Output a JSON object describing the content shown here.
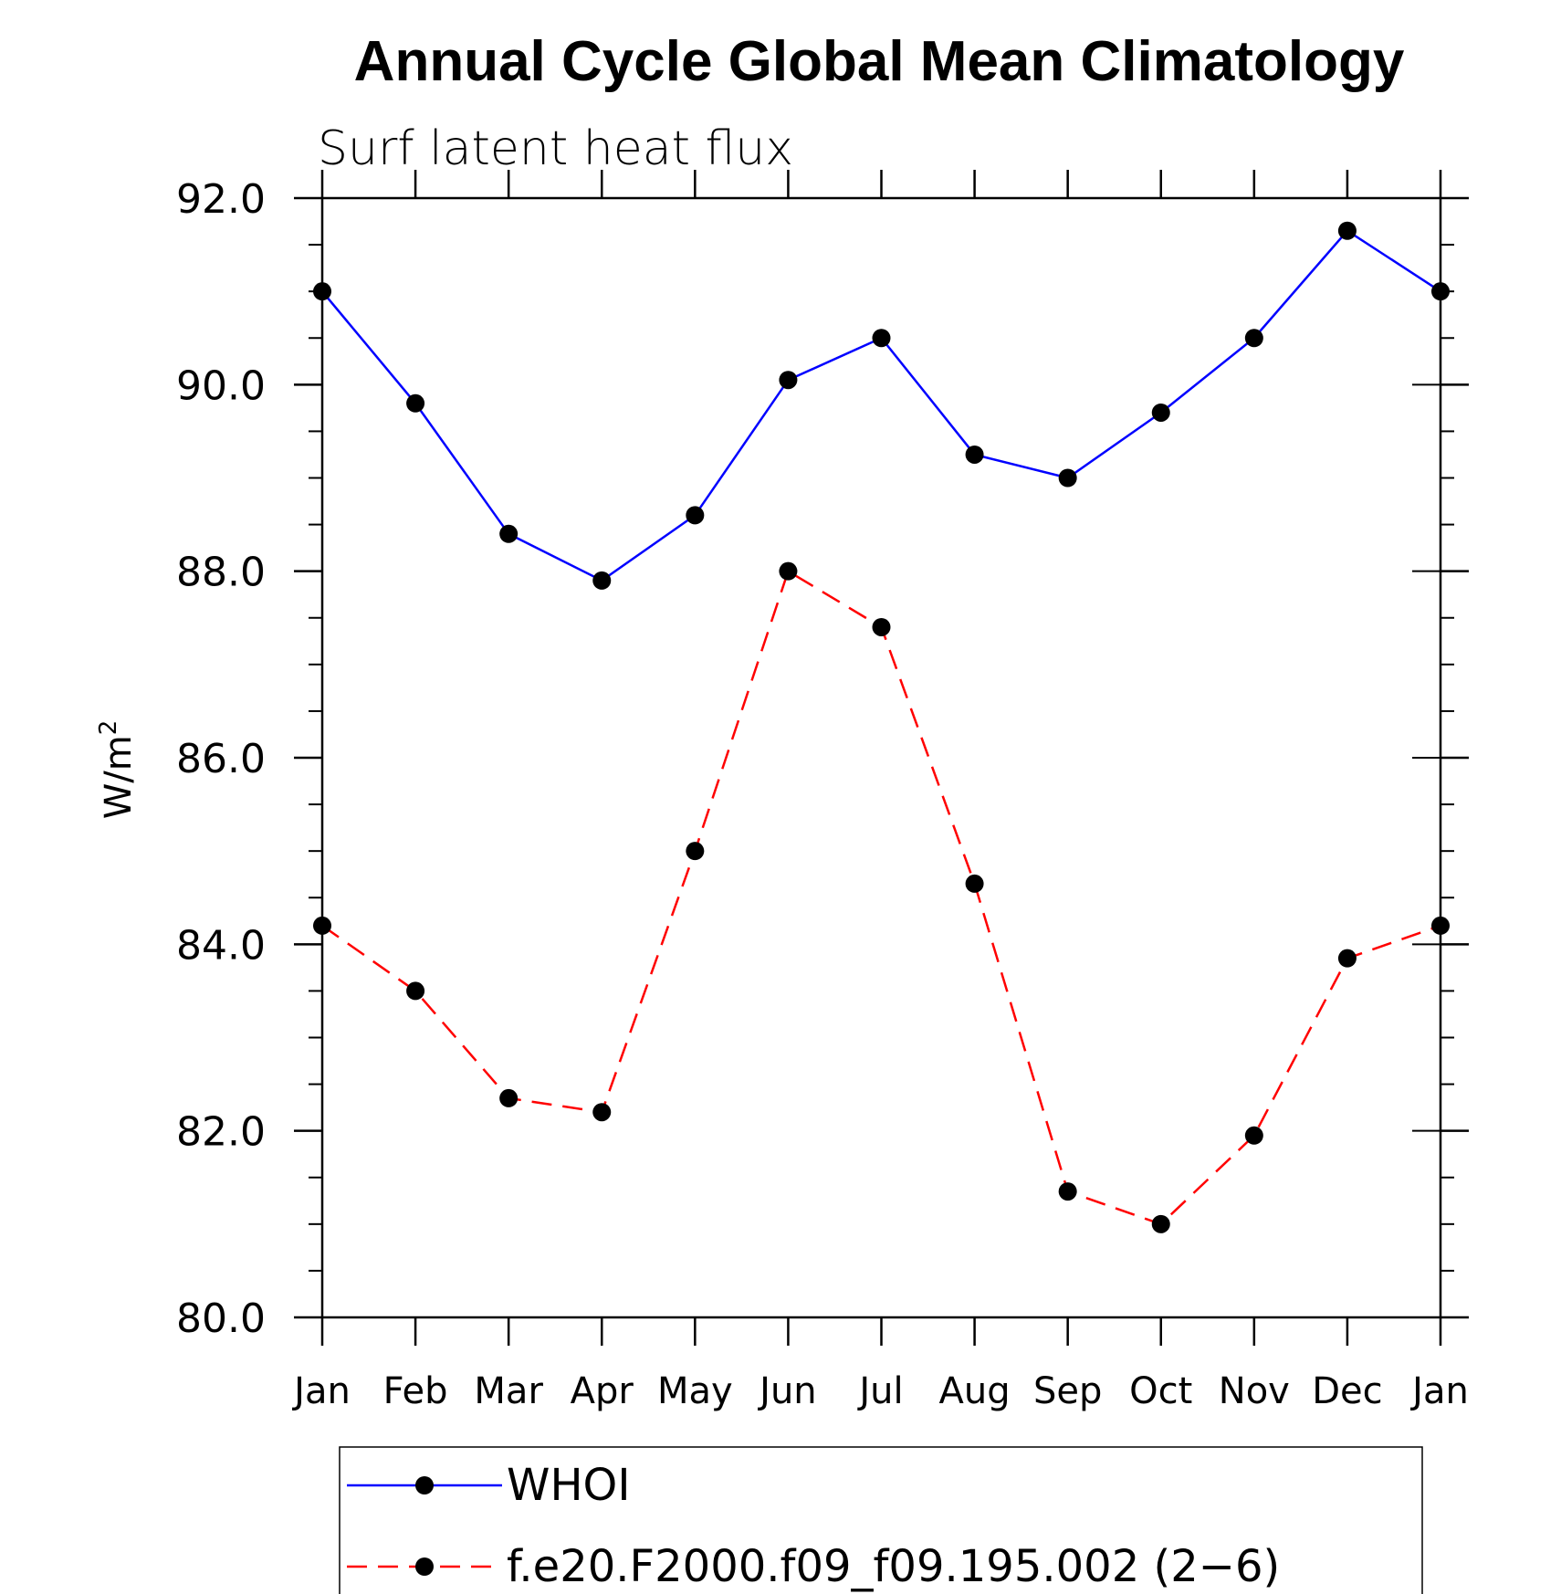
{
  "chart_data": {
    "type": "line",
    "title": "Annual Cycle Global Mean Climatology",
    "subtitle": "Surf latent heat flux",
    "ylabel": "W/m",
    "ylabel_sup": "2",
    "ylim": [
      80,
      92
    ],
    "yticks": [
      "80.0",
      "82.0",
      "84.0",
      "86.0",
      "88.0",
      "90.0",
      "92.0"
    ],
    "categories": [
      "Jan",
      "Feb",
      "Mar",
      "Apr",
      "May",
      "Jun",
      "Jul",
      "Aug",
      "Sep",
      "Oct",
      "Nov",
      "Dec",
      "Jan"
    ],
    "series": [
      {
        "name": "WHOI",
        "color": "#0000ff",
        "dash": "solid",
        "values": [
          91.0,
          89.8,
          88.4,
          87.9,
          88.6,
          90.05,
          90.5,
          89.25,
          89.0,
          89.7,
          90.5,
          91.65,
          91.0
        ]
      },
      {
        "name": "f.e20.F2000.f09_f09.195.002 (2−6)",
        "color": "#ff0000",
        "dash": "dashed",
        "values": [
          84.2,
          83.5,
          82.35,
          82.2,
          85.0,
          88.0,
          87.4,
          84.65,
          81.35,
          81.0,
          81.95,
          83.85,
          84.2
        ]
      }
    ],
    "grid": false,
    "legend": "bottom"
  }
}
